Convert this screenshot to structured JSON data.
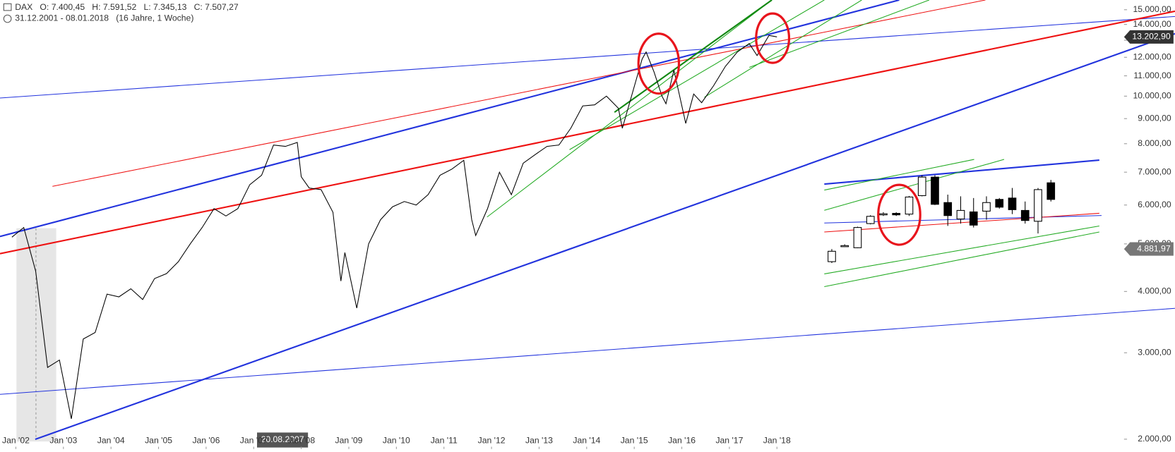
{
  "chart_data": [
    {
      "type": "line",
      "header": "DAX   O: 7.400,45   H: 7.591,52   L: 7.345,13   C: 7.507,27",
      "range": "31.12.2001 - 08.01.2018   (16 Jahre, 1 Woche)",
      "tooltip": "20.08.2007",
      "color": "#000000",
      "log_scale": true,
      "grid": false,
      "x": [
        "2001-12",
        "2002-03",
        "2002-06",
        "2002-09",
        "2002-12",
        "2003-03",
        "2003-06",
        "2003-09",
        "2003-12",
        "2004-03",
        "2004-06",
        "2004-09",
        "2004-12",
        "2005-03",
        "2005-06",
        "2005-09",
        "2005-12",
        "2006-03",
        "2006-06",
        "2006-09",
        "2006-12",
        "2007-03",
        "2007-06",
        "2007-09",
        "2007-12",
        "2008-01",
        "2008-03",
        "2008-06",
        "2008-09",
        "2008-11",
        "2008-12",
        "2009-03",
        "2009-06",
        "2009-09",
        "2009-12",
        "2010-03",
        "2010-06",
        "2010-09",
        "2010-12",
        "2011-03",
        "2011-06",
        "2011-08",
        "2011-09",
        "2011-12",
        "2012-03",
        "2012-06",
        "2012-09",
        "2012-12",
        "2013-03",
        "2013-06",
        "2013-09",
        "2013-12",
        "2014-03",
        "2014-06",
        "2014-09",
        "2014-10",
        "2014-12",
        "2015-03",
        "2015-04",
        "2015-06",
        "2015-08",
        "2015-09",
        "2015-11",
        "2016-02",
        "2016-04",
        "2016-06",
        "2016-09",
        "2016-12",
        "2017-03",
        "2017-06",
        "2017-08",
        "2017-11",
        "2018-01"
      ],
      "values": [
        5160,
        5400,
        4400,
        2800,
        2900,
        2200,
        3200,
        3300,
        3950,
        3900,
        4050,
        3850,
        4250,
        4350,
        4600,
        5000,
        5400,
        5900,
        5700,
        5900,
        6600,
        6900,
        7950,
        7900,
        8050,
        6850,
        6500,
        6450,
        5800,
        4200,
        4800,
        3700,
        5000,
        5600,
        5950,
        6100,
        6000,
        6300,
        6900,
        7100,
        7400,
        5600,
        5200,
        5900,
        7000,
        6300,
        7300,
        7600,
        7900,
        7950,
        8600,
        9550,
        9600,
        10000,
        9450,
        8600,
        9800,
        11900,
        12300,
        11200,
        10000,
        9650,
        11300,
        8800,
        10100,
        9700,
        10500,
        11500,
        12300,
        12800,
        12100,
        13300,
        13202.9
      ],
      "xlim": [
        "2001-09",
        "2025-04"
      ],
      "xticks": [
        {
          "value": "2002-01",
          "label": "Jan '02"
        },
        {
          "value": "2003-01",
          "label": "Jan '03"
        },
        {
          "value": "2004-01",
          "label": "Jan '04"
        },
        {
          "value": "2005-01",
          "label": "Jan '05"
        },
        {
          "value": "2006-01",
          "label": "Jan '06"
        },
        {
          "value": "2007-01",
          "label": "Jan '07"
        },
        {
          "value": "2008-01",
          "label": "Jan '08"
        },
        {
          "value": "2009-01",
          "label": "Jan '09"
        },
        {
          "value": "2010-01",
          "label": "Jan '10"
        },
        {
          "value": "2011-01",
          "label": "Jan '11"
        },
        {
          "value": "2012-01",
          "label": "Jan '12"
        },
        {
          "value": "2013-01",
          "label": "Jan '13"
        },
        {
          "value": "2014-01",
          "label": "Jan '14"
        },
        {
          "value": "2015-01",
          "label": "Jan '15"
        },
        {
          "value": "2016-01",
          "label": "Jan '16"
        },
        {
          "value": "2017-01",
          "label": "Jan '17"
        },
        {
          "value": "2018-01",
          "label": "Jan '18"
        }
      ],
      "ylim": [
        1910,
        15700
      ],
      "yticks": [
        {
          "value": 2000,
          "label": "2.000,00"
        },
        {
          "value": 3000,
          "label": "3.000,00"
        },
        {
          "value": 4000,
          "label": "4.000,00"
        },
        {
          "value": 5000,
          "label": "5.000,00"
        },
        {
          "value": 6000,
          "label": "6.000,00"
        },
        {
          "value": 7000,
          "label": "7.000,00"
        },
        {
          "value": 8000,
          "label": "8.000,00"
        },
        {
          "value": 9000,
          "label": "9.000,00"
        },
        {
          "value": 10000,
          "label": "10.000,00"
        },
        {
          "value": 11000,
          "label": "11.000,00"
        },
        {
          "value": 12000,
          "label": "12.000,00"
        },
        {
          "value": 13000,
          "label": "13.000,00"
        },
        {
          "value": 14000,
          "label": "14.000,00"
        },
        {
          "value": 15000,
          "label": "15.000,00"
        }
      ],
      "price_labels": [
        {
          "value": 13202.9,
          "label": "13.202,90",
          "color": "#333333"
        },
        {
          "value": 4881.97,
          "label": "4.881,97",
          "color": "#777777"
        }
      ]
    },
    {
      "type": "candlestick",
      "open": [
        4600,
        4950,
        4910,
        5500,
        5750,
        5770,
        5750,
        6270,
        6840,
        6070,
        5620,
        5810,
        5830,
        6160,
        6200,
        5850,
        5560,
        6660
      ],
      "high": [
        4880,
        4990,
        5420,
        5720,
        5800,
        5800,
        6260,
        6900,
        6900,
        6300,
        6250,
        6200,
        6250,
        6200,
        6500,
        6100,
        6500,
        6750
      ],
      "low": [
        4570,
        4930,
        4900,
        5480,
        5700,
        5700,
        5700,
        6250,
        6000,
        5440,
        5500,
        5400,
        5600,
        5900,
        5750,
        5500,
        5250,
        6100
      ],
      "close": [
        4830,
        4960,
        5400,
        5690,
        5760,
        5730,
        6230,
        6840,
        6020,
        5710,
        5850,
        5460,
        6070,
        5940,
        5870,
        5580,
        6450,
        6160
      ]
    }
  ]
}
